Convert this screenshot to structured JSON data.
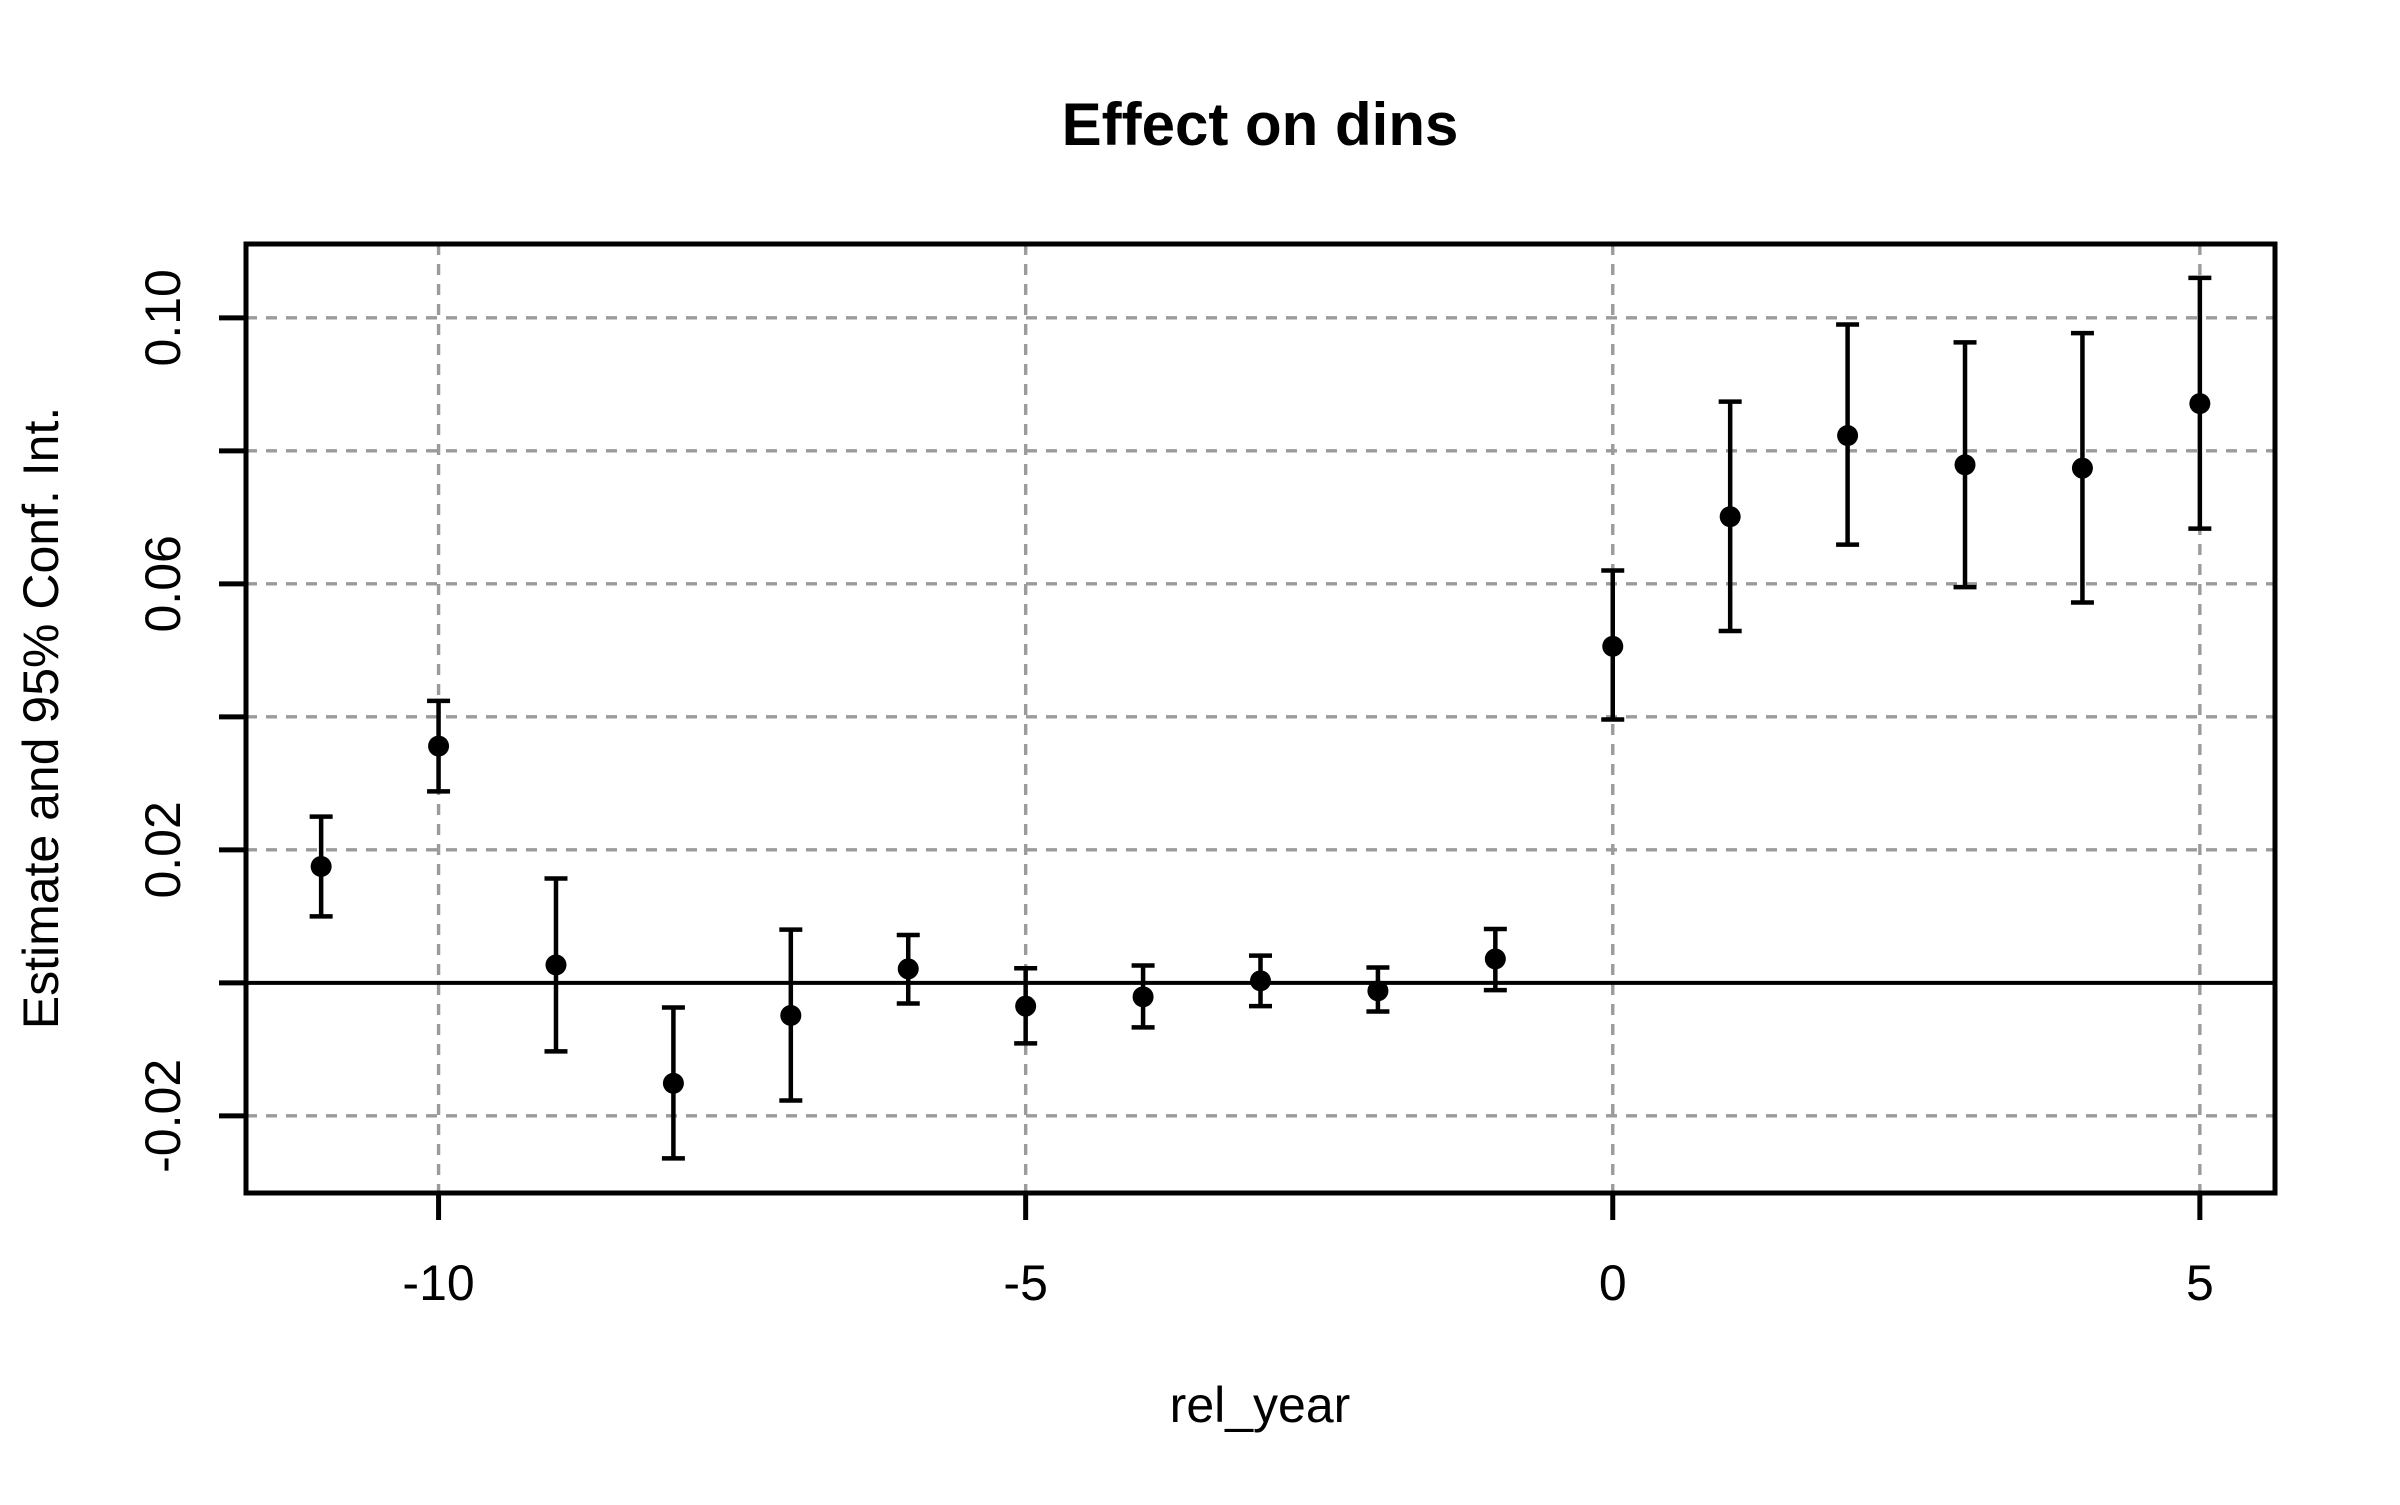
{
  "figure": {
    "background": "#ffffff"
  },
  "chart_data": {
    "type": "scatter",
    "subtype": "event-study-errorbar",
    "title": "Effect on dins",
    "xlabel": "rel_year",
    "ylabel": "Estimate and 95% Conf. Int.",
    "xlim": [
      -11.64,
      5.64
    ],
    "ylim": [
      -0.0316,
      0.1111
    ],
    "grid": {
      "on": true,
      "style": "dashed",
      "color": "#9b9b9b",
      "x_values": [
        -10,
        -5,
        0,
        5
      ],
      "y_values": [
        -0.02,
        0,
        0.02,
        0.04,
        0.06,
        0.08,
        0.1
      ]
    },
    "zero_line": {
      "on": true,
      "y": 0,
      "color": "#000000"
    },
    "x_ticks": [
      {
        "v": -10,
        "label": "-10"
      },
      {
        "v": -5,
        "label": "-5"
      },
      {
        "v": 0,
        "label": "0"
      },
      {
        "v": 5,
        "label": "5"
      }
    ],
    "y_ticks": [
      {
        "v": -0.02,
        "label": "-0.02"
      },
      {
        "v": 0,
        "label": ""
      },
      {
        "v": 0.02,
        "label": "0.02"
      },
      {
        "v": 0.04,
        "label": ""
      },
      {
        "v": 0.06,
        "label": "0.06"
      },
      {
        "v": 0.08,
        "label": ""
      },
      {
        "v": 0.1,
        "label": "0.10"
      }
    ],
    "series": [
      {
        "name": "estimate-with-95ci",
        "marker": "filled-circle",
        "color": "#000000"
      }
    ],
    "points": [
      {
        "x": -11,
        "est": 0.0175,
        "lo": 0.01,
        "hi": 0.025
      },
      {
        "x": -10,
        "est": 0.0356,
        "lo": 0.0288,
        "hi": 0.0424
      },
      {
        "x": -9,
        "est": 0.0027,
        "lo": -0.0103,
        "hi": 0.0157
      },
      {
        "x": -8,
        "est": -0.0151,
        "lo": -0.0264,
        "hi": -0.0037
      },
      {
        "x": -7,
        "est": -0.0049,
        "lo": -0.0177,
        "hi": 0.008
      },
      {
        "x": -6,
        "est": 0.0021,
        "lo": -0.0031,
        "hi": 0.0072
      },
      {
        "x": -5,
        "est": -0.0035,
        "lo": -0.0091,
        "hi": 0.0022
      },
      {
        "x": -4,
        "est": -0.0021,
        "lo": -0.0067,
        "hi": 0.0026
      },
      {
        "x": -3,
        "est": 0.0003,
        "lo": -0.0035,
        "hi": 0.0041
      },
      {
        "x": -2,
        "est": -0.0012,
        "lo": -0.0043,
        "hi": 0.0023
      },
      {
        "x": -1,
        "est": 0.0036,
        "lo": -0.0011,
        "hi": 0.0081
      },
      {
        "x": 0,
        "est": 0.0506,
        "lo": 0.0396,
        "hi": 0.062
      },
      {
        "x": 1,
        "est": 0.0701,
        "lo": 0.0529,
        "hi": 0.0874
      },
      {
        "x": 2,
        "est": 0.0823,
        "lo": 0.0659,
        "hi": 0.099
      },
      {
        "x": 3,
        "est": 0.0779,
        "lo": 0.0595,
        "hi": 0.0963
      },
      {
        "x": 4,
        "est": 0.0774,
        "lo": 0.0572,
        "hi": 0.0977
      },
      {
        "x": 5,
        "est": 0.0871,
        "lo": 0.0683,
        "hi": 0.106
      }
    ],
    "colors": {
      "foreground": "#000000",
      "grid": "#9b9b9b",
      "background": "#ffffff"
    }
  }
}
